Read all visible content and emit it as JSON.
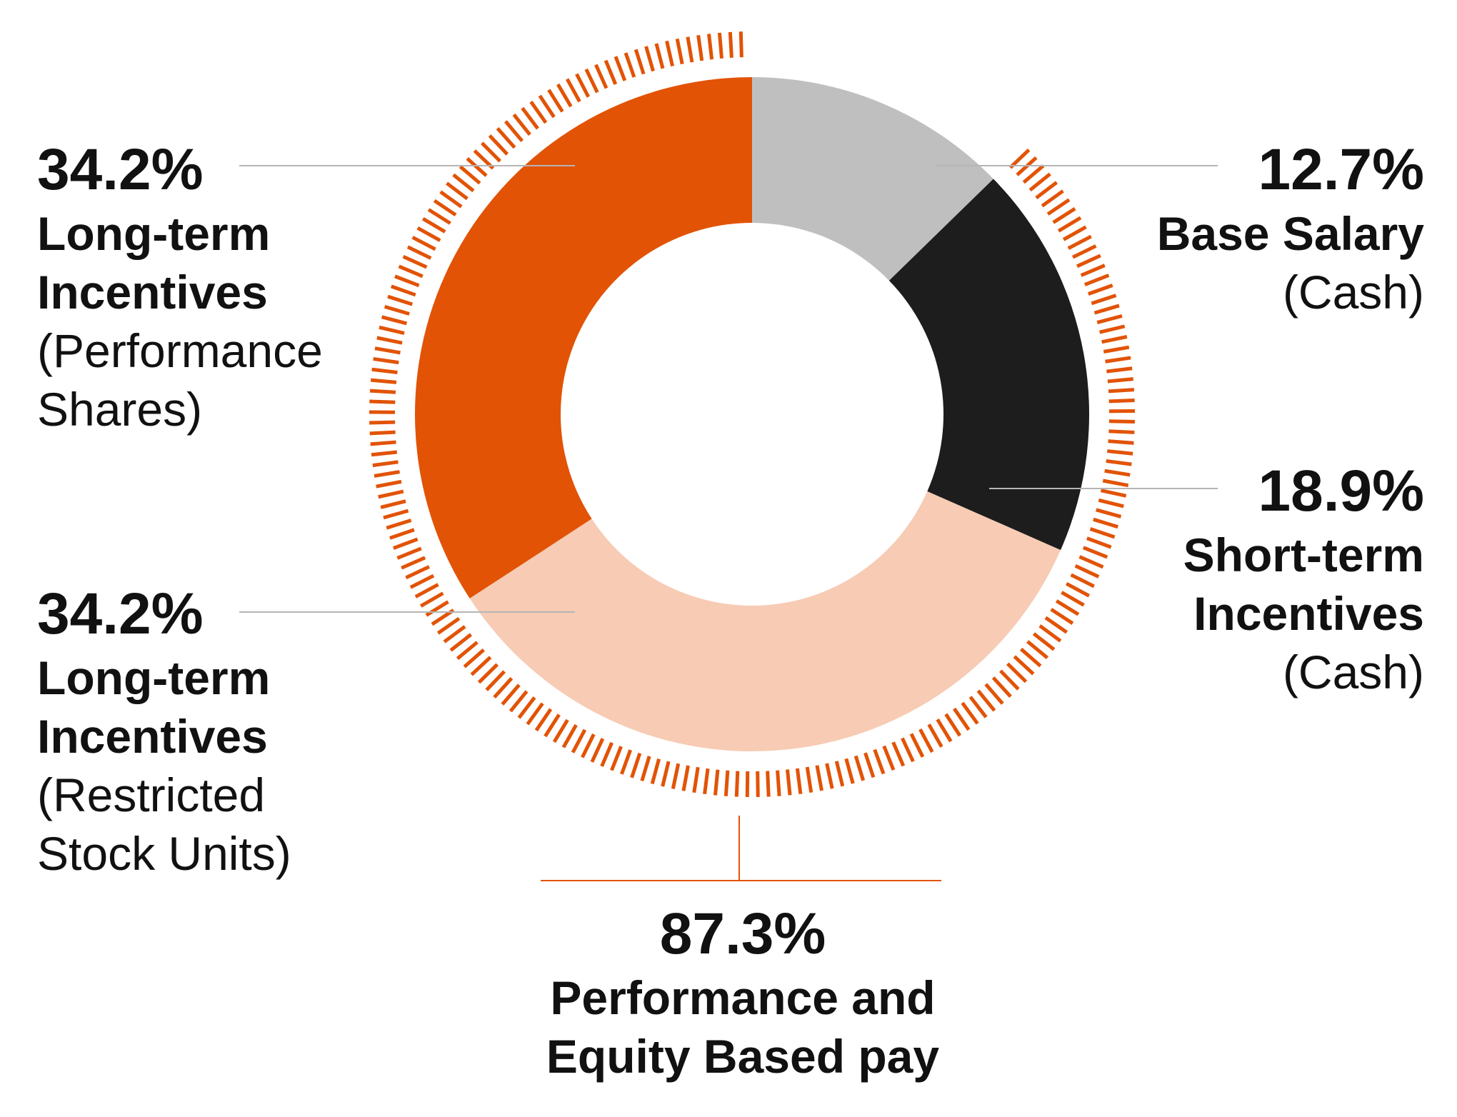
{
  "chart_data": {
    "type": "pie",
    "variant": "donut",
    "slices": [
      {
        "label": "Base Salary",
        "sublabel": "(Cash)",
        "value": 12.7,
        "value_text": "12.7%",
        "color": "#bfbfbf"
      },
      {
        "label": "Short-term\nIncentives",
        "sublabel": "(Cash)",
        "value": 18.9,
        "value_text": "18.9%",
        "color": "#1d1d1d"
      },
      {
        "label": "Long-term\nIncentives",
        "sublabel": "(Restricted\nStock Units)",
        "value": 34.2,
        "value_text": "34.2%",
        "color": "#f7cbb4"
      },
      {
        "label": "Long-term\nIncentives",
        "sublabel": "(Performance\nShares)",
        "value": 34.2,
        "value_text": "34.2%",
        "color": "#e25306"
      }
    ],
    "group_bracket": {
      "value": 87.3,
      "value_text": "87.3%",
      "label": "Performance and\nEquity Based pay",
      "color": "#e25306"
    },
    "leader_line_color": "#b5b5b5"
  }
}
